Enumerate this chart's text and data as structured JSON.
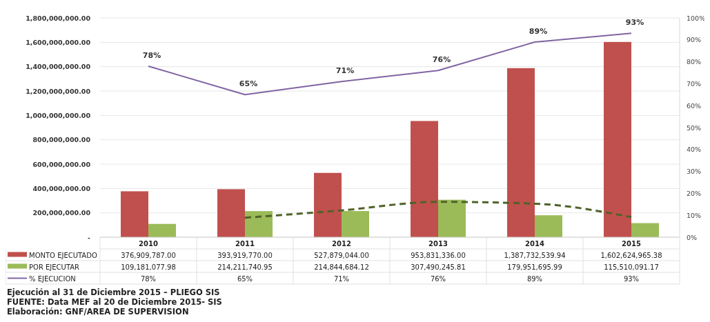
{
  "chart_data": {
    "type": "bar",
    "categories": [
      "2010",
      "2011",
      "2012",
      "2013",
      "2014",
      "2015"
    ],
    "ylim": [
      0,
      1800000000
    ],
    "yticks": [
      {
        "value": 0,
        "label": "-"
      },
      {
        "value": 200000000,
        "label": "200,000,000.00"
      },
      {
        "value": 400000000,
        "label": "400,000,000.00"
      },
      {
        "value": 600000000,
        "label": "600,000,000.00"
      },
      {
        "value": 800000000,
        "label": "800,000,000.00"
      },
      {
        "value": 1000000000,
        "label": "1,000,000,000.00"
      },
      {
        "value": 1200000000,
        "label": "1,200,000,000.00"
      },
      {
        "value": 1400000000,
        "label": "1,400,000,000.00"
      },
      {
        "value": 1600000000,
        "label": "1,600,000,000.00"
      },
      {
        "value": 1800000000,
        "label": "1,800,000,000.00"
      }
    ],
    "y2lim": [
      0,
      100
    ],
    "y2ticks": [
      {
        "value": 0,
        "label": "0%"
      },
      {
        "value": 10,
        "label": "10%"
      },
      {
        "value": 20,
        "label": "20%"
      },
      {
        "value": 30,
        "label": "30%"
      },
      {
        "value": 40,
        "label": "40%"
      },
      {
        "value": 50,
        "label": "50%"
      },
      {
        "value": 60,
        "label": "60%"
      },
      {
        "value": 70,
        "label": "70%"
      },
      {
        "value": 80,
        "label": "80%"
      },
      {
        "value": 90,
        "label": "90%"
      },
      {
        "value": 100,
        "label": "100%"
      }
    ],
    "grid": "y",
    "legend": "bottom",
    "series": [
      {
        "name": "MONTO EJECUTADO",
        "color": "#c0504d",
        "values": [
          376909787.0,
          393919770.0,
          527879044.0,
          953831336.0,
          1387732539.94,
          1602624965.38
        ],
        "value_labels": [
          "376,909,787.00",
          "393,919,770.00",
          "527,879,044.00",
          "953,831,336.00",
          "1,387,732,539.94",
          "1,602,624,965.38"
        ]
      },
      {
        "name": "POR EJECUTAR",
        "color": "#9bbb59",
        "values": [
          109181077.98,
          214211740.95,
          214844684.12,
          307490245.81,
          179951695.99,
          115510091.17
        ],
        "value_labels": [
          "109,181,077.98",
          "214,211,740.95",
          "214,844,684.12",
          "307,490,245.81",
          "179,951,695.99",
          "115,510,091.17"
        ]
      },
      {
        "name": "% EJECUCION",
        "type": "line",
        "axis": "y2",
        "color": "#8064a2",
        "values": [
          78,
          65,
          71,
          76,
          89,
          93
        ],
        "value_labels": [
          "78%",
          "65%",
          "71%",
          "76%",
          "89%",
          "93%"
        ]
      },
      {
        "type": "line",
        "line_style": "dashed",
        "color": "#4f6228",
        "values": [
          null,
          160000000,
          220000000,
          290000000,
          275000000,
          165000000
        ]
      }
    ],
    "annotations": [
      "Ejecución al 31 de Diciembre 2015 – PLIEGO SIS",
      "FUENTE: Data MEF  al 20 de Diciembre 2015- SIS",
      "Elaboración: GNF/AREA DE SUPERVISION"
    ]
  }
}
